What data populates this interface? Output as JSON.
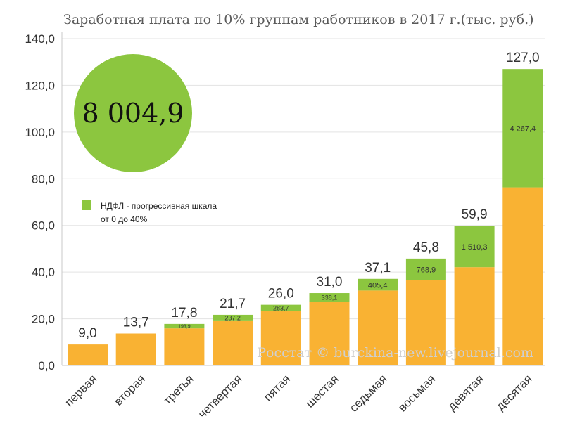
{
  "chart_data": {
    "type": "bar",
    "title": "Заработная плата по 10% группам работников в 2017 г.(тыс. руб.)",
    "categories": [
      "первая",
      "вторая",
      "третья",
      "четвертая",
      "пятая",
      "шестая",
      "седьмая",
      "восьмая",
      "девятая",
      "десятая"
    ],
    "totals": [
      9.0,
      13.7,
      17.8,
      21.7,
      26.0,
      31.0,
      37.1,
      45.8,
      59.9,
      127.0
    ],
    "total_labels": [
      "9,0",
      "13,7",
      "17,8",
      "21,7",
      "26,0",
      "31,0",
      "37,1",
      "45,8",
      "59,9",
      "127,0"
    ],
    "series": [
      {
        "name": "base",
        "color": "#f9b233",
        "values": [
          9.0,
          13.7,
          15.9,
          19.3,
          23.2,
          27.3,
          32.1,
          36.6,
          42.1,
          76.3
        ]
      },
      {
        "name": "НДФЛ - прогрессивная шкала от 0 до 40%",
        "color": "#8cc63f",
        "values": [
          0,
          0,
          1.9,
          2.4,
          2.8,
          3.7,
          5.0,
          9.2,
          17.8,
          50.7
        ]
      }
    ],
    "tax_labels": [
      "",
      "",
      "193,9",
      "237,2",
      "283,7",
      "338,1",
      "405,4",
      "768,9",
      "1 510,3",
      "4 267,4"
    ],
    "ylim": [
      0,
      140
    ],
    "yticks": [
      0,
      20,
      40,
      60,
      80,
      100,
      120,
      140
    ],
    "ytick_labels": [
      "0,0",
      "20,0",
      "40,0",
      "60,0",
      "80,0",
      "100,0",
      "120,0",
      "140,0"
    ],
    "legend": {
      "color": "#8cc63f",
      "line1": "НДФЛ - прогрессивная шкала",
      "line2": "от 0 до 40%"
    },
    "highlight_value": "8 004,9",
    "highlight_color": "#8cc63f",
    "watermark": "Росстат © burckina-new.livejournal.com",
    "grid": true
  }
}
